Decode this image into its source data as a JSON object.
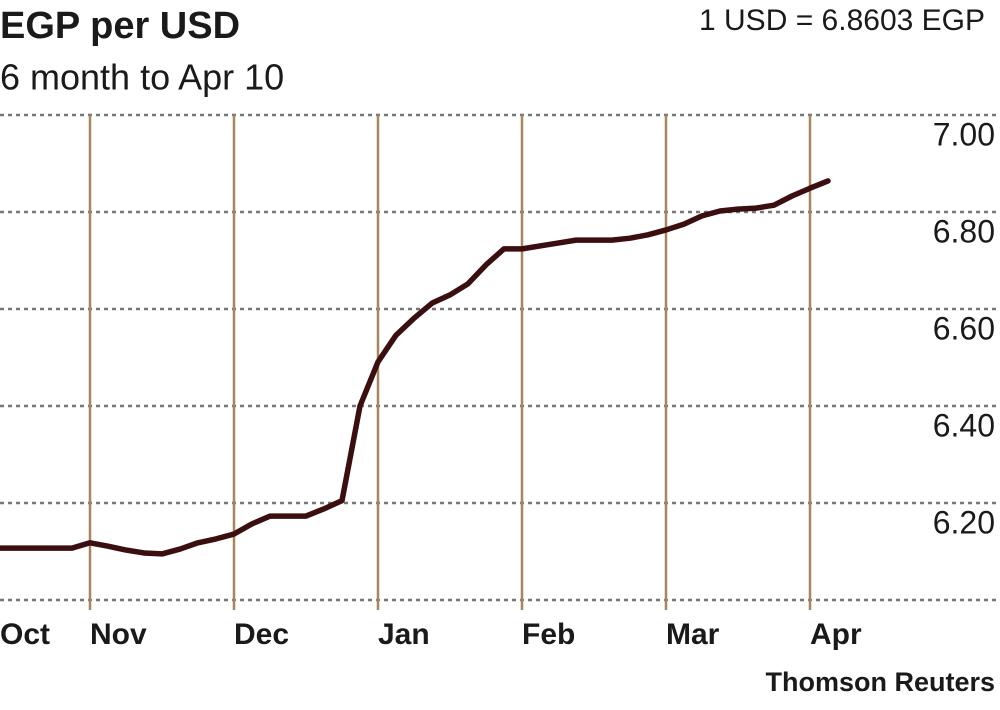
{
  "chart_data": {
    "type": "line",
    "title": "EGP per USD",
    "subtitle": "6 month to Apr 10",
    "annotation": "1 USD = 6.8603 EGP",
    "source": "Thomson Reuters",
    "categories": [
      "Oct",
      null,
      null,
      null,
      null,
      "Nov",
      null,
      null,
      null,
      null,
      null,
      null,
      null,
      "Dec",
      null,
      null,
      null,
      null,
      null,
      null,
      null,
      "Jan",
      null,
      null,
      null,
      null,
      null,
      null,
      null,
      "Feb",
      null,
      null,
      null,
      null,
      null,
      null,
      null,
      "Mar",
      null,
      null,
      null,
      null,
      null,
      null,
      null,
      "Apr",
      null
    ],
    "series": [
      {
        "name": "EGP per USD",
        "color": "#3b0f10",
        "values": [
          6.107,
          6.107,
          6.107,
          6.107,
          6.107,
          6.118,
          6.111,
          6.103,
          6.097,
          6.095,
          6.105,
          6.118,
          6.126,
          6.136,
          6.157,
          6.173,
          6.173,
          6.173,
          6.188,
          6.205,
          6.4,
          6.491,
          6.546,
          6.581,
          6.612,
          6.629,
          6.652,
          6.691,
          6.724,
          6.724,
          6.73,
          6.736,
          6.742,
          6.742,
          6.742,
          6.746,
          6.753,
          6.763,
          6.775,
          6.792,
          6.802,
          6.806,
          6.808,
          6.814,
          6.833,
          6.849,
          6.864
        ]
      }
    ],
    "ylim": [
      6.0,
      7.0
    ],
    "yticks": [
      {
        "value": 6.2,
        "label": "6.20"
      },
      {
        "value": 6.4,
        "label": "6.40"
      },
      {
        "value": 6.6,
        "label": "6.60"
      },
      {
        "value": 6.8,
        "label": "6.80"
      },
      {
        "value": 7.0,
        "label": "7.00"
      }
    ],
    "grid": true
  }
}
